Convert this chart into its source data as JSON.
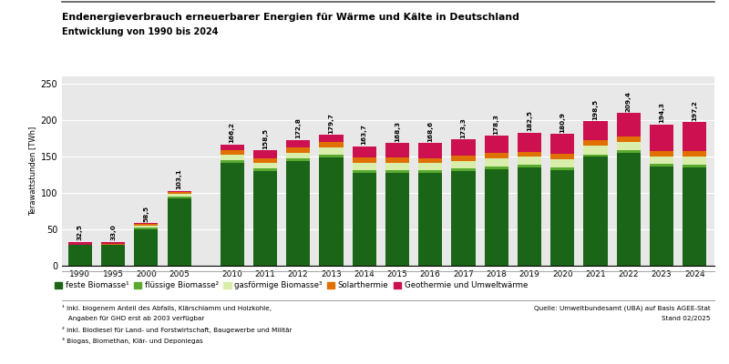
{
  "title": "Endenergieverbrauch erneuerbarer Energien für Wärme und Kälte in Deutschland",
  "subtitle": "Entwicklung von 1990 bis 2024",
  "ylabel": "Terawattstunden [TWh]",
  "ylim": [
    0,
    260
  ],
  "yticks": [
    0,
    50,
    100,
    150,
    200,
    250
  ],
  "background_color": "#ffffff",
  "plot_bg_color": "#e8e8e8",
  "categories": [
    "1990",
    "1995",
    "2000",
    "2005",
    "2010",
    "2011",
    "2012",
    "2013",
    "2014",
    "2015",
    "2016",
    "2017",
    "2018",
    "2019",
    "2020",
    "2021",
    "2022",
    "2023",
    "2024"
  ],
  "totals": [
    32.5,
    33.0,
    58.5,
    103.1,
    166.2,
    158.5,
    172.8,
    179.7,
    163.7,
    168.3,
    168.6,
    173.3,
    178.3,
    182.5,
    180.9,
    198.5,
    209.4,
    194.3,
    197.2
  ],
  "feste_biomasse": [
    28.5,
    28.5,
    50.5,
    92.0,
    141.0,
    130.0,
    143.5,
    148.5,
    127.5,
    128.0,
    127.5,
    130.0,
    133.0,
    135.0,
    131.5,
    149.5,
    155.5,
    136.0,
    135.5
  ],
  "fluessige_biomasse": [
    0.0,
    0.0,
    2.5,
    3.5,
    4.5,
    4.0,
    3.5,
    3.5,
    3.5,
    3.5,
    3.5,
    3.5,
    3.5,
    3.5,
    3.5,
    3.5,
    3.5,
    3.5,
    3.5
  ],
  "gasfoermige_biomasse": [
    0.0,
    0.5,
    2.0,
    3.5,
    7.0,
    7.5,
    8.5,
    10.5,
    10.5,
    10.0,
    10.0,
    10.5,
    11.0,
    11.0,
    11.5,
    11.5,
    11.0,
    11.0,
    11.0
  ],
  "solarthermie": [
    0.5,
    0.5,
    2.0,
    2.0,
    6.5,
    6.5,
    7.0,
    7.0,
    7.0,
    7.0,
    7.0,
    7.0,
    7.0,
    7.0,
    7.0,
    7.5,
    7.5,
    7.5,
    7.5
  ],
  "geothermie": [
    3.5,
    3.5,
    1.5,
    2.1,
    7.2,
    10.5,
    10.3,
    10.2,
    15.2,
    19.8,
    20.6,
    22.3,
    23.8,
    26.0,
    27.4,
    26.5,
    31.9,
    36.3,
    39.7
  ],
  "colors": {
    "feste_biomasse": "#1b6518",
    "fluessige_biomasse": "#5aaa30",
    "gasfoermige_biomasse": "#d8eeaa",
    "solarthermie": "#e07000",
    "geothermie": "#cc1050"
  },
  "legend_labels": [
    "feste Biomasse¹",
    "flüssige Biomasse²",
    "gasförmige Biomasse³",
    "Solarthermie",
    "Geothermie und Umweltwärme"
  ],
  "footnote1": "¹ inkl. biogenem Anteil des Abfalls, Klärschlamm und Holzkohle,",
  "footnote1b": "   Angaben für GHD erst ab 2003 verfügbar",
  "footnote2": "² inkl. Biodiesel für Land- und Forstwirtschaft, Baugewerbe und Militär",
  "footnote3": "³ Biogas, Biomethan, Klär- und Deponiegas",
  "source_line1": "Quelle: Umweltbundesamt (UBA) auf Basis AGEE-Stat",
  "source_line2": "Stand 02/2025"
}
